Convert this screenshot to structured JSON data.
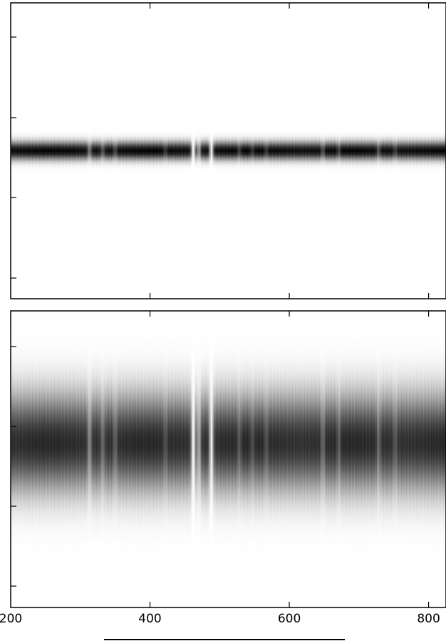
{
  "chart_data": [
    {
      "type": "heatmap",
      "title": "",
      "xlabel": "",
      "ylabel": "",
      "xlim": [
        200,
        825
      ],
      "xticks": [
        200,
        400,
        600,
        800
      ],
      "xtick_labels_shown": false,
      "ytick_labels_shown": false,
      "colormap": "gray_r",
      "band": {
        "profile": "gaussian",
        "center_fraction_from_top": 0.5,
        "sigma_fraction_of_height": 0.02,
        "peak_darkness": 1.0
      },
      "absorption_lines_x": [
        313,
        332,
        350,
        422,
        462,
        470,
        488,
        528,
        547,
        567,
        648,
        671,
        728,
        752
      ],
      "absorption_line_strengths": [
        0.45,
        0.3,
        0.25,
        0.2,
        0.95,
        0.6,
        0.9,
        0.25,
        0.2,
        0.2,
        0.3,
        0.25,
        0.3,
        0.2
      ],
      "continuum_variation": 0.05
    },
    {
      "type": "heatmap",
      "title": "",
      "xlabel": "",
      "ylabel": "",
      "xlim": [
        200,
        825
      ],
      "xticks": [
        200,
        400,
        600,
        800
      ],
      "xtick_labels": [
        "200",
        "400",
        "600",
        "800"
      ],
      "ytick_labels_shown": false,
      "colormap": "gray_r",
      "band": {
        "profile": "gaussian",
        "center_fraction_from_top": 0.445,
        "sigma_fraction_of_height": 0.11,
        "peak_darkness": 0.82
      },
      "absorption_lines_x": [
        313,
        332,
        350,
        422,
        462,
        470,
        488,
        528,
        547,
        567,
        648,
        671,
        728,
        752
      ],
      "absorption_line_strengths": [
        0.45,
        0.3,
        0.25,
        0.2,
        0.95,
        0.6,
        0.9,
        0.25,
        0.2,
        0.2,
        0.3,
        0.25,
        0.3,
        0.2
      ],
      "continuum_variation": 0.05
    }
  ],
  "colors": {
    "axis": "#000000",
    "background": "#ffffff",
    "ink": "#000000"
  }
}
